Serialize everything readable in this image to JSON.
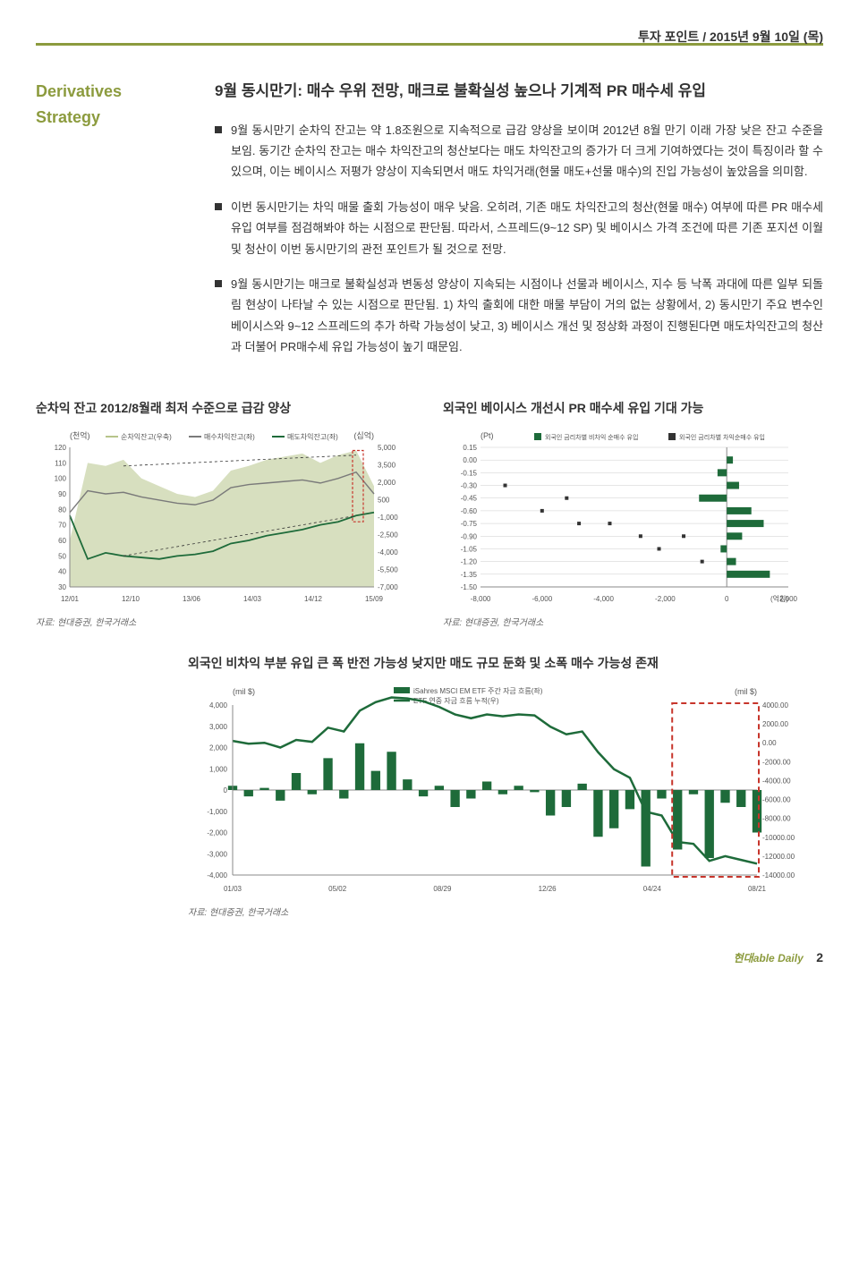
{
  "header": {
    "title": "투자 포인트 / 2015년 9월 10일 (목)"
  },
  "leftcol": {
    "title": "Derivatives Strategy"
  },
  "main_title": "9월 동시만기: 매수 우위 전망, 매크로 불확실성 높으나 기계적 PR 매수세 유입",
  "bullets": [
    "9월 동시만기 순차익 잔고는 약 1.8조원으로 지속적으로 급감 양상을 보이며 2012년 8월 만기 이래 가장 낮은 잔고 수준을 보임. 동기간 순차익 잔고는 매수 차익잔고의 청산보다는 매도 차익잔고의 증가가 더 크게 기여하였다는 것이 특징이라 할 수 있으며, 이는 베이시스 저평가 양상이 지속되면서 매도 차익거래(현물 매도+선물 매수)의 진입 가능성이 높았음을 의미함.",
    "이번 동시만기는 차익 매물 출회 가능성이 매우 낮음. 오히려, 기존 매도 차익잔고의 청산(현물 매수) 여부에 따른 PR 매수세 유입 여부를 점검해봐야 하는 시점으로 판단됨. 따라서, 스프레드(9~12 SP) 및 베이시스 가격 조건에 따른 기존 포지션 이월 및 청산이 이번 동시만기의 관전 포인트가 될 것으로 전망.",
    "9월 동시만기는 매크로 불확실성과 변동성 양상이 지속되는 시점이나 선물과 베이시스, 지수 등 낙폭 과대에 따른 일부 되돌림 현상이 나타날 수 있는 시점으로 판단됨. 1) 차익 출회에 대한 매물 부담이 거의 없는 상황에서, 2) 동시만기 주요 변수인 베이시스와 9~12 스프레드의 추가 하락 가능성이 낮고, 3) 베이시스 개선 및 정상화 과정이 진행된다면 매도차익잔고의 청산과 더불어 PR매수세 유입 가능성이 높기 때문임."
  ],
  "chart1": {
    "title": "순차익 잔고 2012/8월래 최저 수준으로 급감 양상",
    "type": "multi-line-area",
    "left_unit": "(천억)",
    "right_unit": "(십억)",
    "legend": [
      "순차익잔고(우축)",
      "매수차익잔고(좌)",
      "매도차익잔고(좌)"
    ],
    "left_ticks": [
      120,
      110,
      100,
      90,
      80,
      70,
      60,
      50,
      40,
      30
    ],
    "left_ylim": [
      30,
      120
    ],
    "right_ticks": [
      5000,
      3500,
      2000,
      500,
      -1000,
      -2500,
      -4000,
      -5500,
      -7000
    ],
    "right_ylim": [
      -7000,
      5000
    ],
    "x_labels": [
      "12/01",
      "12/10",
      "13/06",
      "14/03",
      "14/12",
      "15/09"
    ],
    "colors": {
      "area": "#b7c48a",
      "buy": "#7a7a7a",
      "sell": "#1e6b3a",
      "axis": "#555"
    },
    "source": "자료: 현대증권, 한국거래소",
    "area_series": [
      60,
      110,
      108,
      112,
      100,
      95,
      90,
      88,
      92,
      105,
      108,
      112,
      114,
      116,
      110,
      115,
      118,
      95
    ],
    "buy_series": [
      78,
      92,
      90,
      91,
      88,
      86,
      84,
      83,
      86,
      94,
      96,
      97,
      98,
      99,
      97,
      100,
      104,
      90
    ],
    "sell_series": [
      76,
      48,
      52,
      50,
      49,
      48,
      50,
      51,
      53,
      58,
      60,
      63,
      65,
      67,
      70,
      72,
      76,
      78
    ]
  },
  "chart2": {
    "title": "외국인 베이시스 개선시 PR 매수세 유입 기대 가능",
    "type": "horizontal-bar-scatter",
    "y_unit": "(Pt)",
    "x_unit": "(억원)",
    "legend": [
      "외국인 금리차별 비차익 순매수 유입",
      "외국인 금리차별 차익순매수 유입"
    ],
    "y_ticks": [
      0.15,
      0.0,
      -0.15,
      -0.3,
      -0.45,
      -0.6,
      -0.75,
      -0.9,
      -1.05,
      -1.2,
      -1.35,
      -1.5
    ],
    "y_ylim": [
      -1.5,
      0.15
    ],
    "x_ticks": [
      -8000,
      -6000,
      -4000,
      -2000,
      0,
      2000
    ],
    "x_xlim": [
      -8000,
      2000
    ],
    "colors": {
      "bar": "#1e6b3a",
      "marker": "#333",
      "grid": "#ccc"
    },
    "source": "자료: 현대증권, 한국거래소",
    "bars": [
      {
        "y": 0.0,
        "v": 200
      },
      {
        "y": -0.15,
        "v": -300
      },
      {
        "y": -0.3,
        "v": 400
      },
      {
        "y": -0.45,
        "v": -900
      },
      {
        "y": -0.6,
        "v": 800
      },
      {
        "y": -0.75,
        "v": 1200
      },
      {
        "y": -0.9,
        "v": 500
      },
      {
        "y": -1.05,
        "v": -200
      },
      {
        "y": -1.2,
        "v": 300
      },
      {
        "y": -1.35,
        "v": 1400
      }
    ],
    "markers": [
      {
        "y": -0.3,
        "v": -7200
      },
      {
        "y": -0.45,
        "v": -5200
      },
      {
        "y": -0.6,
        "v": -6000
      },
      {
        "y": -0.75,
        "v": -4800
      },
      {
        "y": -0.75,
        "v": -3800
      },
      {
        "y": -0.9,
        "v": -2800
      },
      {
        "y": -0.9,
        "v": -1400
      },
      {
        "y": -1.05,
        "v": -2200
      },
      {
        "y": -1.2,
        "v": -800
      }
    ]
  },
  "chart3": {
    "title": "외국인 비차익 부분 유입 큰 폭 반전 가능성 낮지만 매도 규모 둔화 및 소폭 매수 가능성 존재",
    "type": "bar-line-dual-axis",
    "left_unit": "(mil $)",
    "right_unit": "(mil $)",
    "legend": [
      "iSahres MSCI EM ETF 주간 자금 흐름(좌)",
      "ETF 연중 자금 흐름 누적(우)"
    ],
    "left_ticks": [
      4000,
      3000,
      2000,
      1000,
      0,
      -1000,
      -2000,
      -3000,
      -4000
    ],
    "left_ylim": [
      -4000,
      4000
    ],
    "right_ticks": [
      4000.0,
      2000.0,
      0.0,
      -2000.0,
      -4000.0,
      -6000.0,
      -8000.0,
      -10000.0,
      -12000.0,
      -14000.0
    ],
    "right_ylim": [
      -14000,
      4000
    ],
    "x_labels": [
      "01/03",
      "05/02",
      "08/29",
      "12/26",
      "04/24",
      "08/21"
    ],
    "colors": {
      "bar": "#1e6b3a",
      "line": "#1e6b3a",
      "highlight_box": "#c7352b",
      "axis": "#555"
    },
    "source": "자료: 현대증권, 한국거래소",
    "bars": [
      200,
      -300,
      100,
      -500,
      800,
      -200,
      1500,
      -400,
      2200,
      900,
      1800,
      500,
      -300,
      200,
      -800,
      -400,
      400,
      -200,
      200,
      -100,
      -1200,
      -800,
      300,
      -2200,
      -1800,
      -900,
      -3600,
      -400,
      -2800,
      -200,
      -3200,
      -600,
      -800,
      -2000
    ],
    "line": [
      200,
      -100,
      0,
      -500,
      300,
      100,
      1600,
      1200,
      3400,
      4300,
      4800,
      4700,
      4400,
      3800,
      3000,
      2600,
      3000,
      2800,
      3000,
      2900,
      1700,
      900,
      1200,
      -1000,
      -2800,
      -3700,
      -7300,
      -7700,
      -10500,
      -10700,
      -12500,
      -12000,
      -12400,
      -12800
    ],
    "highlight_x": [
      28,
      34
    ]
  },
  "footer": {
    "logo": "현대able Daily",
    "page": "2"
  }
}
